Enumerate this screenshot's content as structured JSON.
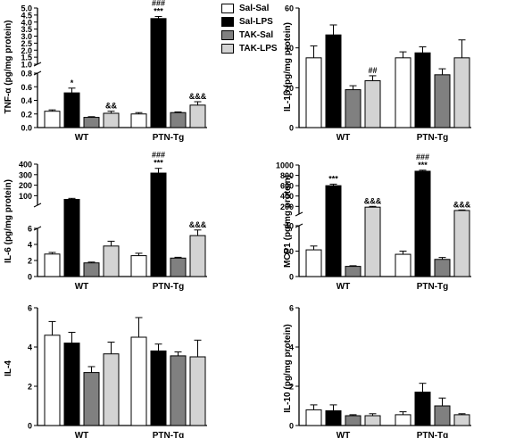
{
  "legend": [
    {
      "label": "Sal-Sal",
      "color": "#ffffff"
    },
    {
      "label": "Sal-LPS",
      "color": "#000000"
    },
    {
      "label": "TAK-Sal",
      "color": "#808080"
    },
    {
      "label": "TAK-LPS",
      "color": "#d3d3d3"
    }
  ],
  "chart_data": [
    {
      "type": "bar",
      "ylabel": "TNF-α (pg/mg protein)",
      "categories": [
        "WT",
        "PTN-Tg"
      ],
      "y_break": true,
      "lower_ylim": [
        0,
        0.8
      ],
      "lower_ticks": [
        "0.0",
        "0.2",
        "0.4",
        "0.6",
        "0.8"
      ],
      "upper_ylim": [
        1.0,
        5.0
      ],
      "upper_ticks": [
        "1.0",
        "1.5",
        "2.0",
        "2.5",
        "3.0",
        "3.5",
        "4.0",
        "4.5",
        "5.0"
      ],
      "series": [
        {
          "name": "Sal-Sal",
          "values": [
            0.24,
            0.2
          ],
          "errors": [
            0.02,
            0.02
          ]
        },
        {
          "name": "Sal-LPS",
          "values": [
            0.51,
            4.25
          ],
          "errors": [
            0.07,
            0.15
          ]
        },
        {
          "name": "TAK-Sal",
          "values": [
            0.15,
            0.22
          ],
          "errors": [
            0.01,
            0.01
          ]
        },
        {
          "name": "TAK-LPS",
          "values": [
            0.21,
            0.33
          ],
          "errors": [
            0.03,
            0.05
          ]
        }
      ],
      "annotations": [
        {
          "category": "WT",
          "series": "Sal-LPS",
          "text": "*"
        },
        {
          "category": "WT",
          "series": "TAK-LPS",
          "text": "&&"
        },
        {
          "category": "PTN-Tg",
          "series": "Sal-LPS",
          "text": "###\n***"
        },
        {
          "category": "PTN-Tg",
          "series": "TAK-LPS",
          "text": "&&&"
        }
      ]
    },
    {
      "type": "bar",
      "ylabel": "IL-1β (pg/mg protein)",
      "categories": [
        "WT",
        "PTN-Tg"
      ],
      "y_break": false,
      "ylim": [
        0,
        60
      ],
      "ticks": [
        "0",
        "20",
        "40",
        "60"
      ],
      "series": [
        {
          "name": "Sal-Sal",
          "values": [
            35,
            35
          ],
          "errors": [
            6,
            3
          ]
        },
        {
          "name": "Sal-LPS",
          "values": [
            46.5,
            37.5
          ],
          "errors": [
            5,
            3
          ]
        },
        {
          "name": "TAK-Sal",
          "values": [
            19,
            26.5
          ],
          "errors": [
            2,
            3
          ]
        },
        {
          "name": "TAK-LPS",
          "values": [
            23.5,
            35
          ],
          "errors": [
            2.5,
            9
          ]
        }
      ],
      "annotations": [
        {
          "category": "WT",
          "series": "TAK-LPS",
          "text": "##"
        }
      ]
    },
    {
      "type": "bar",
      "ylabel": "IL-6 (pg/mg protein)",
      "categories": [
        "WT",
        "PTN-Tg"
      ],
      "y_break": true,
      "lower_ylim": [
        0,
        6
      ],
      "lower_ticks": [
        "0",
        "2",
        "4",
        "6"
      ],
      "upper_ylim": [
        10,
        400
      ],
      "upper_ticks": [
        "100",
        "200",
        "300",
        "400"
      ],
      "series": [
        {
          "name": "Sal-Sal",
          "values": [
            2.8,
            2.6
          ],
          "errors": [
            0.2,
            0.3
          ]
        },
        {
          "name": "Sal-LPS",
          "values": [
            65,
            315
          ],
          "errors": [
            10,
            45
          ]
        },
        {
          "name": "TAK-Sal",
          "values": [
            1.7,
            2.3
          ],
          "errors": [
            0.1,
            0.1
          ]
        },
        {
          "name": "TAK-LPS",
          "values": [
            3.8,
            5.1
          ],
          "errors": [
            0.6,
            0.7
          ]
        }
      ],
      "annotations": [
        {
          "category": "PTN-Tg",
          "series": "Sal-LPS",
          "text": "###\n***"
        },
        {
          "category": "PTN-Tg",
          "series": "TAK-LPS",
          "text": "&&&"
        }
      ]
    },
    {
      "type": "bar",
      "ylabel": "MCP1 (pg/mg protein)",
      "categories": [
        "WT",
        "PTN-Tg"
      ],
      "y_break": true,
      "lower_ylim": [
        0,
        40
      ],
      "lower_ticks": [
        "0",
        "20",
        "40"
      ],
      "upper_ylim": [
        50,
        1000
      ],
      "upper_ticks": [
        "200",
        "400",
        "600",
        "800",
        "1000"
      ],
      "series": [
        {
          "name": "Sal-Sal",
          "values": [
            21,
            17.5
          ],
          "errors": [
            3,
            2.5
          ]
        },
        {
          "name": "Sal-LPS",
          "values": [
            600,
            880
          ],
          "errors": [
            30,
            20
          ]
        },
        {
          "name": "TAK-Sal",
          "values": [
            8,
            13.5
          ],
          "errors": [
            0.5,
            1.5
          ]
        },
        {
          "name": "TAK-LPS",
          "values": [
            185,
            120
          ],
          "errors": [
            15,
            10
          ]
        }
      ],
      "annotations": [
        {
          "category": "WT",
          "series": "Sal-LPS",
          "text": "***"
        },
        {
          "category": "WT",
          "series": "TAK-LPS",
          "text": "&&&"
        },
        {
          "category": "PTN-Tg",
          "series": "Sal-LPS",
          "text": "###\n***"
        },
        {
          "category": "PTN-Tg",
          "series": "TAK-LPS",
          "text": "&&&"
        }
      ]
    },
    {
      "type": "bar",
      "ylabel": "IL-4",
      "categories": [
        "WT",
        "PTN-Tg"
      ],
      "y_break": false,
      "ylim": [
        0,
        6
      ],
      "ticks": [
        "0",
        "2",
        "4",
        "6"
      ],
      "series": [
        {
          "name": "Sal-Sal",
          "values": [
            4.6,
            4.5
          ],
          "errors": [
            0.7,
            1.0
          ]
        },
        {
          "name": "Sal-LPS",
          "values": [
            4.2,
            3.8
          ],
          "errors": [
            0.55,
            0.35
          ]
        },
        {
          "name": "TAK-Sal",
          "values": [
            2.7,
            3.55
          ],
          "errors": [
            0.3,
            0.2
          ]
        },
        {
          "name": "TAK-LPS",
          "values": [
            3.65,
            3.5
          ],
          "errors": [
            0.6,
            0.85
          ]
        }
      ],
      "annotations": []
    },
    {
      "type": "bar",
      "ylabel": "IL-10 (pg/mg protein)",
      "categories": [
        "WT",
        "PTN-Tg"
      ],
      "y_break": false,
      "ylim": [
        0,
        6
      ],
      "ticks": [
        "0",
        "2",
        "4",
        "6"
      ],
      "series": [
        {
          "name": "Sal-Sal",
          "values": [
            0.8,
            0.55
          ],
          "errors": [
            0.25,
            0.15
          ]
        },
        {
          "name": "Sal-LPS",
          "values": [
            0.75,
            1.7
          ],
          "errors": [
            0.3,
            0.45
          ]
        },
        {
          "name": "TAK-Sal",
          "values": [
            0.5,
            1.0
          ],
          "errors": [
            0.05,
            0.4
          ]
        },
        {
          "name": "TAK-LPS",
          "values": [
            0.5,
            0.55
          ],
          "errors": [
            0.1,
            0.05
          ]
        }
      ],
      "annotations": []
    }
  ]
}
